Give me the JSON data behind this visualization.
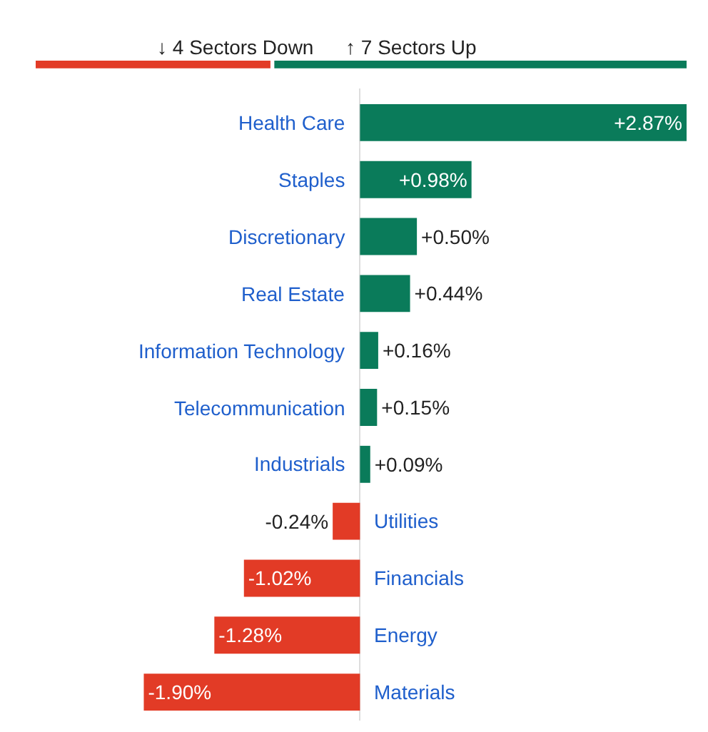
{
  "chart_data": {
    "type": "bar",
    "orientation": "horizontal",
    "categories": [
      "Health Care",
      "Staples",
      "Discretionary",
      "Real Estate",
      "Information Technology",
      "Telecommunication",
      "Industrials",
      "Utilities",
      "Financials",
      "Energy",
      "Materials"
    ],
    "values": [
      2.87,
      0.98,
      0.5,
      0.44,
      0.16,
      0.15,
      0.09,
      -0.24,
      -1.02,
      -1.28,
      -1.9
    ],
    "colors": [
      "#0a7b5a",
      "#0a7b5a",
      "#0a7b5a",
      "#0a7b5a",
      "#0a7b5a",
      "#0a7b5a",
      "#0a7b5a",
      "#e23b26",
      "#e23b26",
      "#e23b26",
      "#e23b26"
    ],
    "value_labels": [
      "+2.87%",
      "+0.98%",
      "+0.50%",
      "+0.44%",
      "+0.16%",
      "+0.15%",
      "+0.09%",
      "-0.24%",
      "-1.02%",
      "-1.28%",
      "-1.90%"
    ],
    "annotations": [
      "↓ 4 Sectors Down",
      "↑ 7 Sectors Up"
    ],
    "legend": false
  }
}
